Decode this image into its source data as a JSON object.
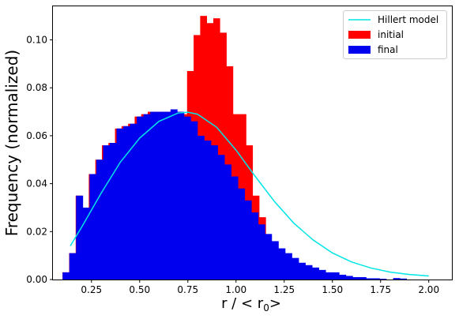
{
  "chart_data": {
    "type": "bar",
    "title": "",
    "xlabel_main": "r / < r",
    "xlabel_sub": "0",
    "xlabel_end": ">",
    "ylabel": "Frequency (normalized)",
    "xlim": [
      0.05,
      2.12
    ],
    "ylim": [
      0.0,
      0.114
    ],
    "xticks": [
      0.25,
      0.5,
      0.75,
      1.0,
      1.25,
      1.5,
      1.75,
      2.0
    ],
    "xtick_labels": [
      "0.25",
      "0.50",
      "0.75",
      "1.00",
      "1.25",
      "1.50",
      "1.75",
      "2.00"
    ],
    "yticks": [
      0.0,
      0.02,
      0.04,
      0.06,
      0.08,
      0.1
    ],
    "ytick_labels": [
      "0.00",
      "0.02",
      "0.04",
      "0.06",
      "0.08",
      "0.10"
    ],
    "legend_position": "top-right",
    "series": [
      {
        "name": "initial",
        "kind": "histogram",
        "color": "#ff0000",
        "bin_edges": [
          0.1,
          0.134,
          0.168,
          0.202,
          0.236,
          0.27,
          0.304,
          0.338,
          0.372,
          0.406,
          0.44,
          0.474,
          0.508,
          0.542,
          0.576,
          0.61,
          0.644,
          0.678,
          0.712,
          0.746,
          0.78,
          0.814,
          0.848,
          0.882,
          0.916,
          0.95,
          0.984,
          1.018,
          1.052,
          1.086,
          1.12,
          1.154,
          1.188,
          1.222,
          1.256,
          1.29,
          1.324,
          1.358,
          1.392,
          1.426,
          1.46,
          1.494,
          1.528,
          1.562,
          1.596,
          1.63,
          1.664,
          1.698,
          1.732,
          1.766,
          1.8,
          1.834,
          1.868,
          1.902
        ],
        "values": [
          0.003,
          0.011,
          0.035,
          0.03,
          0.044,
          0.05,
          0.056,
          0.057,
          0.063,
          0.064,
          0.065,
          0.068,
          0.069,
          0.07,
          0.07,
          0.07,
          0.07,
          0.07,
          0.069,
          0.087,
          0.102,
          0.11,
          0.107,
          0.109,
          0.103,
          0.089,
          0.069,
          0.069,
          0.056,
          0.035,
          0.026,
          0.015,
          0.01,
          0.008,
          0.007,
          0.006,
          0.005,
          0.003,
          0.002,
          0.002,
          0.002,
          0.001,
          0.0,
          0.0,
          0.0,
          0.0,
          0.0,
          0.0,
          0.0,
          0.0,
          0.0,
          0.0,
          0.0
        ]
      },
      {
        "name": "final",
        "kind": "histogram",
        "color": "#0000ee",
        "bin_edges": [
          0.1,
          0.135,
          0.17,
          0.205,
          0.24,
          0.275,
          0.31,
          0.345,
          0.38,
          0.415,
          0.45,
          0.485,
          0.52,
          0.555,
          0.59,
          0.625,
          0.66,
          0.695,
          0.73,
          0.765,
          0.8,
          0.835,
          0.87,
          0.905,
          0.94,
          0.975,
          1.01,
          1.045,
          1.08,
          1.115,
          1.15,
          1.185,
          1.22,
          1.255,
          1.29,
          1.325,
          1.36,
          1.395,
          1.43,
          1.465,
          1.5,
          1.535,
          1.57,
          1.605,
          1.64,
          1.675,
          1.71,
          1.745,
          1.78,
          1.815,
          1.85,
          1.885,
          1.92
        ],
        "values": [
          0.003,
          0.011,
          0.035,
          0.03,
          0.044,
          0.05,
          0.056,
          0.057,
          0.063,
          0.064,
          0.065,
          0.068,
          0.069,
          0.07,
          0.07,
          0.07,
          0.071,
          0.07,
          0.068,
          0.066,
          0.06,
          0.058,
          0.056,
          0.052,
          0.048,
          0.043,
          0.038,
          0.033,
          0.028,
          0.023,
          0.019,
          0.016,
          0.013,
          0.011,
          0.009,
          0.007,
          0.006,
          0.005,
          0.004,
          0.003,
          0.003,
          0.002,
          0.0015,
          0.001,
          0.001,
          0.0005,
          0.0005,
          0.0003,
          0.0,
          0.0006,
          0.0004,
          0.0
        ]
      },
      {
        "name": "Hillert model",
        "kind": "line",
        "color": "#00e5e5",
        "x": [
          0.14,
          0.2,
          0.3,
          0.4,
          0.5,
          0.6,
          0.7,
          0.75,
          0.8,
          0.9,
          1.0,
          1.1,
          1.2,
          1.3,
          1.4,
          1.5,
          1.6,
          1.7,
          1.8,
          1.9,
          2.0
        ],
        "y": [
          0.014,
          0.022,
          0.036,
          0.049,
          0.059,
          0.066,
          0.0695,
          0.0698,
          0.069,
          0.0635,
          0.054,
          0.043,
          0.0325,
          0.0235,
          0.0165,
          0.0111,
          0.0073,
          0.0048,
          0.0031,
          0.0021,
          0.0015
        ]
      }
    ]
  }
}
